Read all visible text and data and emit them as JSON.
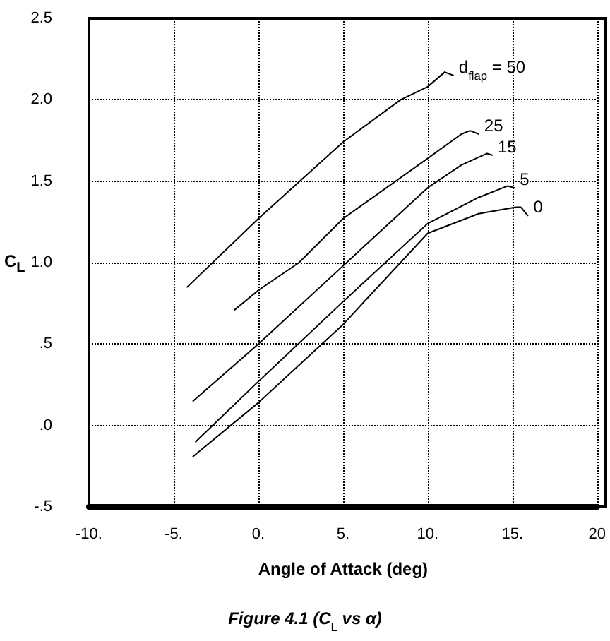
{
  "chart_data": {
    "type": "line",
    "xlabel": "Angle of Attack (deg)",
    "ylabel": "C$_{L}$",
    "xlim": [
      -10,
      20
    ],
    "ylim": [
      -0.5,
      2.5
    ],
    "xticks": [
      {
        "value": -10,
        "label": "-10."
      },
      {
        "value": -5,
        "label": "-5."
      },
      {
        "value": 0,
        "label": "0."
      },
      {
        "value": 5,
        "label": "5."
      },
      {
        "value": 10,
        "label": "10."
      },
      {
        "value": 15,
        "label": "15."
      },
      {
        "value": 20,
        "label": "20"
      }
    ],
    "yticks": [
      {
        "value": -0.5,
        "label": "-.5"
      },
      {
        "value": 0,
        "label": ".0"
      },
      {
        "value": 0.5,
        "label": ".5"
      },
      {
        "value": 1,
        "label": "1.0"
      },
      {
        "value": 1.5,
        "label": "1.5"
      },
      {
        "value": 2,
        "label": "2.0"
      },
      {
        "value": 2.5,
        "label": "2.5"
      }
    ],
    "grid": true,
    "legend": false,
    "marker": "none",
    "line_style": "solid",
    "annotations": [
      "Figure 4.1 (C$_{L}$ vs α)"
    ],
    "series": [
      {
        "name": "d$_{flap}$ = 50",
        "color": "#000000",
        "x": [
          -4.2,
          0,
          5,
          8.4,
          10,
          11,
          11.5
        ],
        "values": [
          0.85,
          1.27,
          1.74,
          2.0,
          2.08,
          2.17,
          2.15
        ]
      },
      {
        "name": "25",
        "color": "#000000",
        "x": [
          -1.4,
          0,
          2.4,
          5,
          10,
          12,
          12.5,
          13
        ],
        "values": [
          0.71,
          0.83,
          1.0,
          1.27,
          1.64,
          1.79,
          1.81,
          1.79
        ]
      },
      {
        "name": "15",
        "color": "#000000",
        "x": [
          -3.85,
          0,
          5,
          10,
          12,
          13.5,
          13.8
        ],
        "values": [
          0.15,
          0.5,
          0.98,
          1.46,
          1.6,
          1.67,
          1.66
        ]
      },
      {
        "name": "5",
        "color": "#000000",
        "x": [
          -3.7,
          0,
          5,
          10,
          13,
          14.7,
          15.1
        ],
        "values": [
          -0.1,
          0.27,
          0.76,
          1.24,
          1.4,
          1.47,
          1.46
        ]
      },
      {
        "name": "0",
        "color": "#000000",
        "x": [
          -3.85,
          0,
          5,
          10,
          13,
          15.2,
          15.5,
          15.9
        ],
        "values": [
          -0.19,
          0.14,
          0.62,
          1.18,
          1.3,
          1.34,
          1.34,
          1.29
        ]
      }
    ]
  }
}
